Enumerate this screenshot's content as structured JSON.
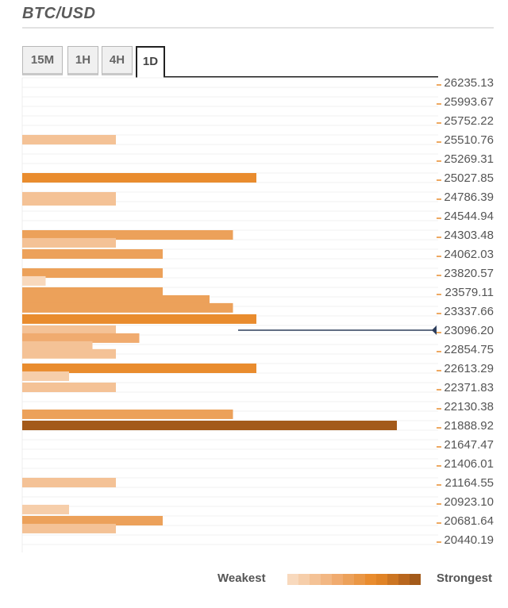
{
  "header": {
    "title": "BTC/USD"
  },
  "tabs": [
    {
      "label": "15M",
      "active": false
    },
    {
      "label": "1H",
      "active": false
    },
    {
      "label": "4H",
      "active": false
    },
    {
      "label": "1D",
      "active": true
    }
  ],
  "legend": {
    "weakest_label": "Weakest",
    "strongest_label": "Strongest",
    "colors": [
      "#f8d9bd",
      "#f6ceaa",
      "#f4c296",
      "#f2b783",
      "#f0ab6f",
      "#eca15a",
      "#ea9745",
      "#e98c2e",
      "#e08326",
      "#cc7522",
      "#b8661e",
      "#a35a1a"
    ]
  },
  "chart_data": {
    "type": "bar",
    "orientation": "horizontal",
    "title": "BTC/USD",
    "timeframe": "1D",
    "current_price": 23096.2,
    "y_ticks": [
      26235.13,
      25993.67,
      25752.22,
      25510.76,
      25269.31,
      25027.85,
      24786.39,
      24544.94,
      24303.48,
      24062.03,
      23820.57,
      23579.11,
      23337.66,
      23096.2,
      22854.75,
      22613.29,
      22371.83,
      22130.38,
      21888.92,
      21647.47,
      21406.01,
      21164.55,
      20923.1,
      20681.64,
      20440.19
    ],
    "y_tick_labels": [
      "26235.13",
      "25993.67",
      "25752.22",
      "25510.76",
      "25269.31",
      "25027.85",
      "24786.39",
      "24544.94",
      "24303.48",
      "24062.03",
      "23820.57",
      "23579.11",
      "23337.66",
      "23096.20",
      "22854.75",
      "22613.29",
      "22371.83",
      "22130.38",
      "21888.92",
      "21647.47",
      "21406.01",
      "21164.55",
      "20923.10",
      "20681.64",
      "20440.19"
    ],
    "x_max": 17,
    "bars": [
      {
        "price": 25510.76,
        "strength": 4,
        "color": "#f4c296"
      },
      {
        "price": 25027.85,
        "strength": 10,
        "color": "#e98c2e"
      },
      {
        "price": 24786.39,
        "strength": 4,
        "color": "#f4c296"
      },
      {
        "price": 24736.39,
        "strength": 4,
        "color": "#f4c296"
      },
      {
        "price": 24303.48,
        "strength": 9,
        "color": "#eca15a"
      },
      {
        "price": 24203.48,
        "strength": 4,
        "color": "#f4c296"
      },
      {
        "price": 24062.03,
        "strength": 6,
        "color": "#eca15a"
      },
      {
        "price": 23820.57,
        "strength": 6,
        "color": "#eca15a"
      },
      {
        "price": 23720.57,
        "strength": 1,
        "color": "#f8d9bd"
      },
      {
        "price": 23579.11,
        "strength": 6,
        "color": "#eca15a"
      },
      {
        "price": 23479.11,
        "strength": 8,
        "color": "#eca15a"
      },
      {
        "price": 23379.11,
        "strength": 9,
        "color": "#eca15a"
      },
      {
        "price": 23237.66,
        "strength": 10,
        "color": "#e98c2e"
      },
      {
        "price": 23096.2,
        "strength": 4,
        "color": "#f4c296"
      },
      {
        "price": 22996.2,
        "strength": 5,
        "color": "#f0ab6f"
      },
      {
        "price": 22896.2,
        "strength": 3,
        "color": "#f4c296"
      },
      {
        "price": 22796.2,
        "strength": 4,
        "color": "#f4c296"
      },
      {
        "price": 22613.29,
        "strength": 10,
        "color": "#e98c2e"
      },
      {
        "price": 22513.29,
        "strength": 2,
        "color": "#f6ceaa"
      },
      {
        "price": 22371.83,
        "strength": 4,
        "color": "#f4c296"
      },
      {
        "price": 22030.38,
        "strength": 9,
        "color": "#eca15a"
      },
      {
        "price": 21888.92,
        "strength": 16,
        "color": "#a35a1a"
      },
      {
        "price": 21164.55,
        "strength": 4,
        "color": "#f4c296"
      },
      {
        "price": 20823.1,
        "strength": 2,
        "color": "#f6ceaa"
      },
      {
        "price": 20681.64,
        "strength": 6,
        "color": "#eca15a"
      },
      {
        "price": 20581.64,
        "strength": 4,
        "color": "#f4c296"
      }
    ]
  }
}
